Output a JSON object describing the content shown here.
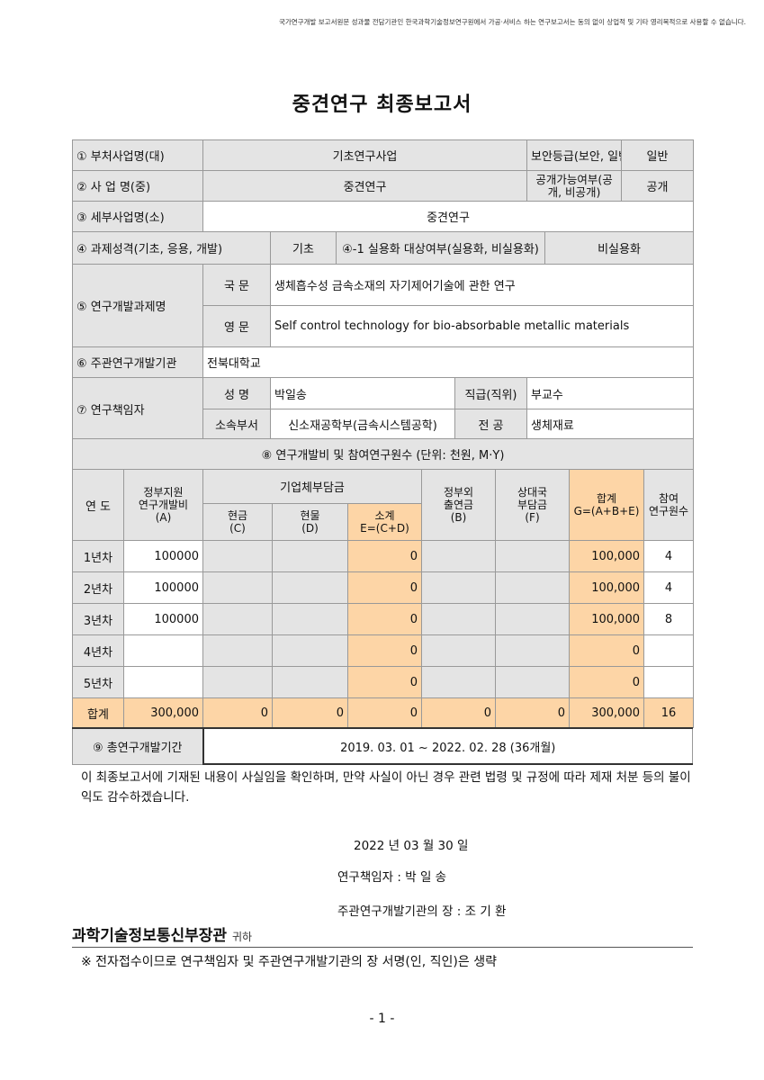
{
  "notice": "국가연구개발 보고서원문 성과물 전담기관인 한국과학기술정보연구원에서 가공·서비스 하는 연구보고서는 동의 없이 상업적 및 기타 영리목적으로 사용할 수 없습니다.",
  "title": "중견연구 최종보고서",
  "info": {
    "r1": {
      "label": "① 부처사업명(대)",
      "value": "기초연구사업",
      "label2": "보안등급(보안, 일반)",
      "value2": "일반"
    },
    "r2": {
      "label": "② 사 업 명(중)",
      "value": "중견연구",
      "label2": "공개가능여부(공개, 비공개)",
      "value2": "공개"
    },
    "r3": {
      "label": "③ 세부사업명(소)",
      "value": "중견연구"
    },
    "r4": {
      "label": "④ 과제성격(기초, 응용, 개발)",
      "value": "기초",
      "label2": "④-1 실용화 대상여부(실용화, 비실용화)",
      "value2": "비실용화"
    },
    "r5": {
      "label": "⑤ 연구개발과제명",
      "kor_label": "국 문",
      "kor": "생체흡수성 금속소재의 자기제어기술에 관한 연구",
      "eng_label": "영 문",
      "eng": "Self control technology for bio-absorbable metallic materials"
    },
    "r6": {
      "label": "⑥ 주관연구개발기관",
      "value": "전북대학교"
    },
    "r7": {
      "label": "⑦ 연구책임자",
      "name_label": "성 명",
      "name": "박일송",
      "pos_label": "직급(직위)",
      "pos": "부교수",
      "dept_label": "소속부서",
      "dept": "신소재공학부(금속시스템공학)",
      "major_label": "전 공",
      "major": "생체재료"
    }
  },
  "budget": {
    "title": "⑧ 연구개발비 및 참여연구원수 (단위: 천원, M·Y)",
    "headers": {
      "year": "연 도",
      "gov": "정부지원\n연구개발비\n(A)",
      "corp": "기업체부담금",
      "cash": "현금\n(C)",
      "kind": "현물\n(D)",
      "sub": "소계\nE=(C+D)",
      "other": "정부외\n출연금\n(B)",
      "partner": "상대국\n부담금\n(F)",
      "total": "합계\nG=(A+B+E)",
      "people": "참여\n연구원수"
    },
    "rows": [
      {
        "year": "1년차",
        "gov": "100000",
        "cash": "",
        "kind": "",
        "sub": "0",
        "other": "",
        "partner": "",
        "total": "100,000",
        "people": "4"
      },
      {
        "year": "2년차",
        "gov": "100000",
        "cash": "",
        "kind": "",
        "sub": "0",
        "other": "",
        "partner": "",
        "total": "100,000",
        "people": "4"
      },
      {
        "year": "3년차",
        "gov": "100000",
        "cash": "",
        "kind": "",
        "sub": "0",
        "other": "",
        "partner": "",
        "total": "100,000",
        "people": "8"
      },
      {
        "year": "4년차",
        "gov": "",
        "cash": "",
        "kind": "",
        "sub": "0",
        "other": "",
        "partner": "",
        "total": "0",
        "people": ""
      },
      {
        "year": "5년차",
        "gov": "",
        "cash": "",
        "kind": "",
        "sub": "0",
        "other": "",
        "partner": "",
        "total": "0",
        "people": ""
      },
      {
        "year": "합계",
        "gov": "300,000",
        "cash": "0",
        "kind": "0",
        "sub": "0",
        "other": "0",
        "partner": "0",
        "total": "300,000",
        "people": "16"
      }
    ]
  },
  "period": {
    "label": "⑨ 총연구개발기간",
    "value": "2019. 03. 01 ~ 2022. 02. 28 (36개월)"
  },
  "statement": "이 최종보고서에 기재된 내용이 사실임을 확인하며, 만약 사실이 아닌 경우 관련 법령 및 규정에 따라 제재 처분 등의 불이익도 감수하겠습니다.",
  "date": "2022 년   03 월   30 일",
  "pi": "연구책임자 : 박 일 송",
  "head": "주관연구개발기관의 장 : 조 기 환",
  "minister": "과학기술정보통신부장관",
  "minister_suffix": "귀하",
  "note": "※ 전자접수이므로 연구책임자 및 주관연구개발기관의 장 서명(인, 직인)은 생략",
  "page_number": "- 1 -"
}
